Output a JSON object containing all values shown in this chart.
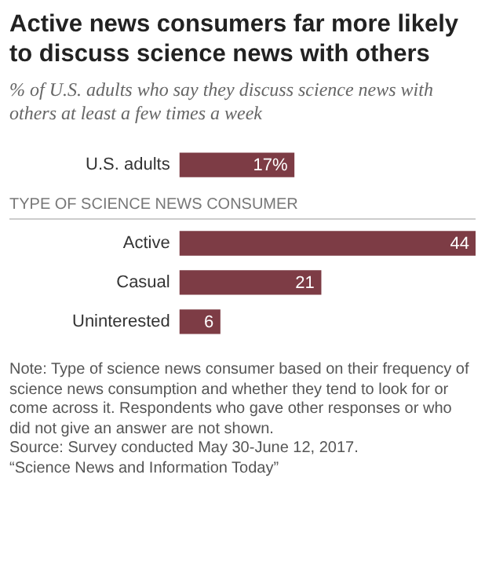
{
  "chart_data": {
    "type": "bar",
    "orientation": "horizontal",
    "title": "Active news consumers far more likely to discuss science news with others",
    "subtitle": "% of U.S. adults who say they discuss science news with others at least a few times a week",
    "categories": [
      "U.S. adults",
      null,
      "Active",
      "Casual",
      "Uninterested"
    ],
    "values": [
      17,
      null,
      44,
      21,
      6
    ],
    "value_labels": [
      "17%",
      null,
      "44",
      "21",
      "6"
    ],
    "color": "#7d3c45",
    "xlim": [
      0,
      44
    ],
    "tick_labels": "y",
    "legend": false,
    "annotations": [
      "TYPE OF SCIENCE NEWS CONSUMER",
      "Note: Type of science news consumer based on their frequency of science news consumption and whether they tend to look for or come across it. Respondents who gave other responses or who did not give an answer are not shown.",
      "Source: Survey conducted May 30-June 12, 2017.",
      "“Science News and Information Today”"
    ]
  }
}
